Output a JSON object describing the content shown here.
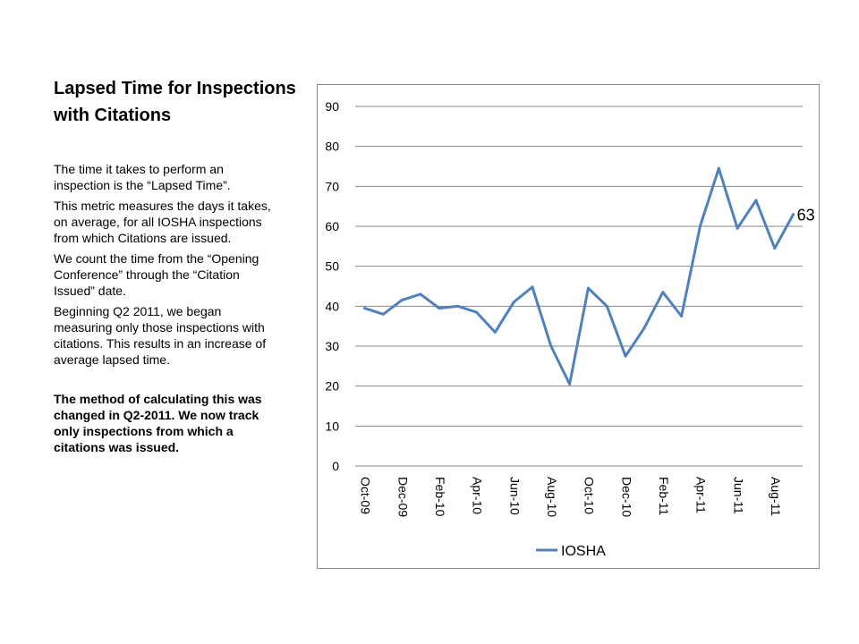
{
  "slide": {
    "title": "Lapsed Time for Inspections with Citations",
    "paragraphs": [
      "The time it takes to perform an inspection is the “Lapsed Time”.",
      "This metric measures the days it takes, on average, for all IOSHA inspections from which Citations are issued.",
      "We count the time from the “Opening Conference” through the “Citation Issued” date.",
      "Beginning Q2 2011, we began measuring only those inspections with citations.  This results in an increase of average lapsed time."
    ],
    "note": "The method of calculating this was changed in Q2-2011.  We now track only inspections from which a citations was issued."
  },
  "chart_data": {
    "type": "line",
    "title": "",
    "xlabel": "",
    "ylabel": "",
    "ylim": [
      0,
      90
    ],
    "yticks": [
      0,
      10,
      20,
      30,
      40,
      50,
      60,
      70,
      80,
      90
    ],
    "grid": true,
    "legend_position": "bottom",
    "x_tick_labels": [
      "Oct-09",
      "Dec-09",
      "Feb-10",
      "Apr-10",
      "Jun-10",
      "Aug-10",
      "Oct-10",
      "Dec-10",
      "Feb-11",
      "Apr-11",
      "Jun-11",
      "Aug-11"
    ],
    "categories": [
      "Oct-09",
      "Nov-09",
      "Dec-09",
      "Jan-10",
      "Feb-10",
      "Mar-10",
      "Apr-10",
      "May-10",
      "Jun-10",
      "Jul-10",
      "Aug-10",
      "Sep-10",
      "Oct-10",
      "Nov-10",
      "Dec-10",
      "Jan-11",
      "Feb-11",
      "Mar-11",
      "Apr-11",
      "May-11",
      "Jun-11",
      "Jul-11",
      "Aug-11",
      "Sep-11"
    ],
    "series": [
      {
        "name": "IOSHA",
        "color": "#4F81BD",
        "values": [
          39.5,
          38,
          41.5,
          43,
          39.5,
          40,
          38.5,
          33.5,
          41,
          44.8,
          30,
          20.5,
          44.5,
          40,
          27.5,
          34.5,
          43.5,
          37.5,
          60,
          74.5,
          59.5,
          66.5,
          54.5,
          63
        ]
      }
    ],
    "data_labels": [
      {
        "category": "Sep-11",
        "text": "63"
      }
    ]
  }
}
